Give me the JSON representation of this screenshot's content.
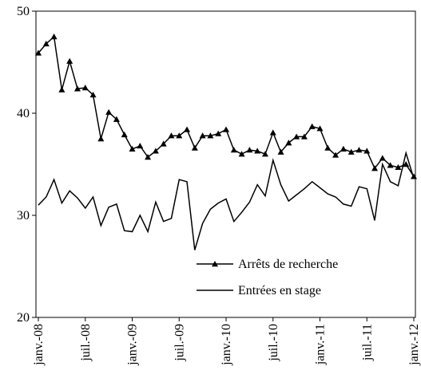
{
  "chart_data": {
    "type": "line",
    "categories": [
      "janv.-08",
      null,
      null,
      null,
      null,
      null,
      "juil.-08",
      null,
      null,
      null,
      null,
      null,
      "janv.-09",
      null,
      null,
      null,
      null,
      null,
      "juil.-09",
      null,
      null,
      null,
      null,
      null,
      "janv.-10",
      null,
      null,
      null,
      null,
      null,
      "juil.-10",
      null,
      null,
      null,
      null,
      null,
      "janv.-11",
      null,
      null,
      null,
      null,
      null,
      "juil.-11",
      null,
      null,
      null,
      null,
      null,
      "janv.-12"
    ],
    "series": [
      {
        "name": "Arrêts de recherche",
        "color": "#000000",
        "marker": "triangle",
        "values": [
          45.9,
          46.8,
          47.5,
          42.3,
          45.1,
          42.4,
          42.5,
          41.8,
          37.5,
          40.1,
          39.4,
          37.9,
          36.5,
          36.8,
          35.7,
          36.3,
          37.0,
          37.8,
          37.8,
          38.4,
          36.6,
          37.8,
          37.8,
          38.0,
          38.4,
          36.4,
          36.0,
          36.4,
          36.3,
          36.0,
          38.1,
          36.2,
          37.1,
          37.7,
          37.7,
          38.7,
          38.5,
          36.6,
          35.9,
          36.5,
          36.2,
          36.4,
          36.3,
          34.6,
          35.6,
          34.9,
          34.7,
          35.0,
          33.8
        ]
      },
      {
        "name": "Entrées en stage",
        "color": "#000000",
        "marker": "none",
        "values": [
          31.0,
          31.8,
          33.5,
          31.2,
          32.4,
          31.7,
          30.7,
          31.8,
          29.0,
          30.8,
          31.1,
          28.5,
          28.4,
          30.0,
          28.4,
          31.3,
          29.4,
          29.7,
          33.5,
          33.3,
          26.6,
          29.2,
          30.6,
          31.2,
          31.6,
          29.4,
          30.3,
          31.3,
          33.0,
          31.9,
          35.4,
          33.0,
          31.4,
          32.0,
          32.6,
          33.3,
          32.7,
          32.1,
          31.8,
          31.1,
          30.9,
          32.8,
          32.6,
          29.5,
          35.0,
          33.3,
          32.9,
          36.1,
          33.6
        ]
      }
    ],
    "ylim": [
      20,
      50
    ],
    "yticks": [
      20,
      30,
      40,
      50
    ],
    "grid": false,
    "legend": "lower right"
  }
}
